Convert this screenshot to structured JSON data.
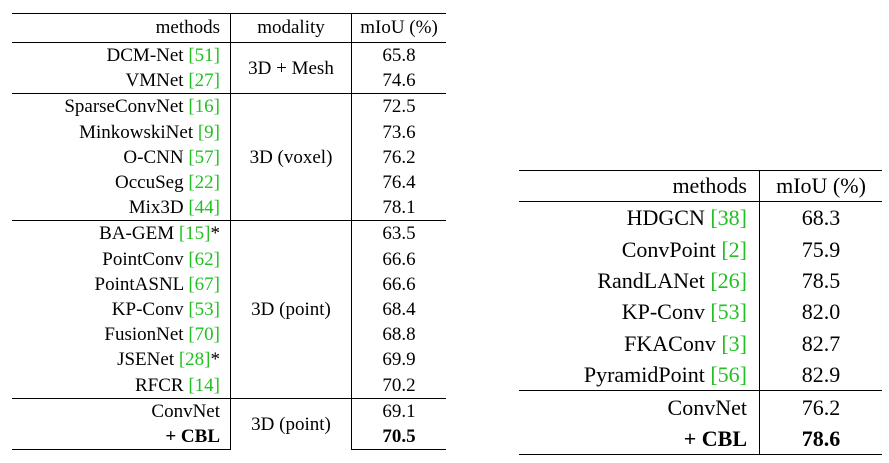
{
  "left_table": {
    "headers": [
      "methods",
      "modality",
      "mIoU (%)"
    ],
    "groups": [
      {
        "modality": "3D + Mesh",
        "rows": [
          {
            "method": "DCM-Net",
            "ref": "[51]",
            "suffix": "",
            "value": "65.8"
          },
          {
            "method": "VMNet",
            "ref": "[27]",
            "suffix": "",
            "value": "74.6"
          }
        ]
      },
      {
        "modality": "3D (voxel)",
        "rows": [
          {
            "method": "SparseConvNet",
            "ref": "[16]",
            "suffix": "",
            "value": "72.5"
          },
          {
            "method": "MinkowskiNet",
            "ref": "[9]",
            "suffix": "",
            "value": "73.6"
          },
          {
            "method": "O-CNN",
            "ref": "[57]",
            "suffix": "",
            "value": "76.2"
          },
          {
            "method": "OccuSeg",
            "ref": "[22]",
            "suffix": "",
            "value": "76.4"
          },
          {
            "method": "Mix3D",
            "ref": "[44]",
            "suffix": "",
            "value": "78.1"
          }
        ]
      },
      {
        "modality": "3D (point)",
        "rows": [
          {
            "method": "BA-GEM",
            "ref": "[15]",
            "suffix": "*",
            "value": "63.5"
          },
          {
            "method": "PointConv",
            "ref": "[62]",
            "suffix": "",
            "value": "66.6"
          },
          {
            "method": "PointASNL",
            "ref": "[67]",
            "suffix": "",
            "value": "66.6"
          },
          {
            "method": "KP-Conv",
            "ref": "[53]",
            "suffix": "",
            "value": "68.4"
          },
          {
            "method": "FusionNet",
            "ref": "[70]",
            "suffix": "",
            "value": "68.8"
          },
          {
            "method": "JSENet",
            "ref": "[28]",
            "suffix": "*",
            "value": "69.9"
          },
          {
            "method": "RFCR",
            "ref": "[14]",
            "suffix": "",
            "value": "70.2"
          }
        ]
      },
      {
        "modality": "3D (point)",
        "rows": [
          {
            "method": "ConvNet",
            "ref": "",
            "suffix": "",
            "value": "69.1"
          },
          {
            "method": "+ CBL",
            "ref": "",
            "suffix": "",
            "value": "70.5",
            "bold": true
          }
        ]
      }
    ]
  },
  "right_table": {
    "headers": [
      "methods",
      "mIoU (%)"
    ],
    "rows": [
      {
        "method": "HDGCN",
        "ref": "[38]",
        "value": "68.3"
      },
      {
        "method": "ConvPoint",
        "ref": "[2]",
        "value": "75.9"
      },
      {
        "method": "RandLANet",
        "ref": "[26]",
        "value": "78.5"
      },
      {
        "method": "KP-Conv",
        "ref": "[53]",
        "value": "82.0"
      },
      {
        "method": "FKAConv",
        "ref": "[3]",
        "value": "82.7"
      },
      {
        "method": "PyramidPoint",
        "ref": "[56]",
        "value": "82.9"
      }
    ],
    "ours": [
      {
        "method": "ConvNet",
        "value": "76.2"
      },
      {
        "method": "+ CBL",
        "value": "78.6",
        "bold": true
      }
    ]
  },
  "colors": {
    "reference": "#22c022",
    "text": "#000000"
  }
}
